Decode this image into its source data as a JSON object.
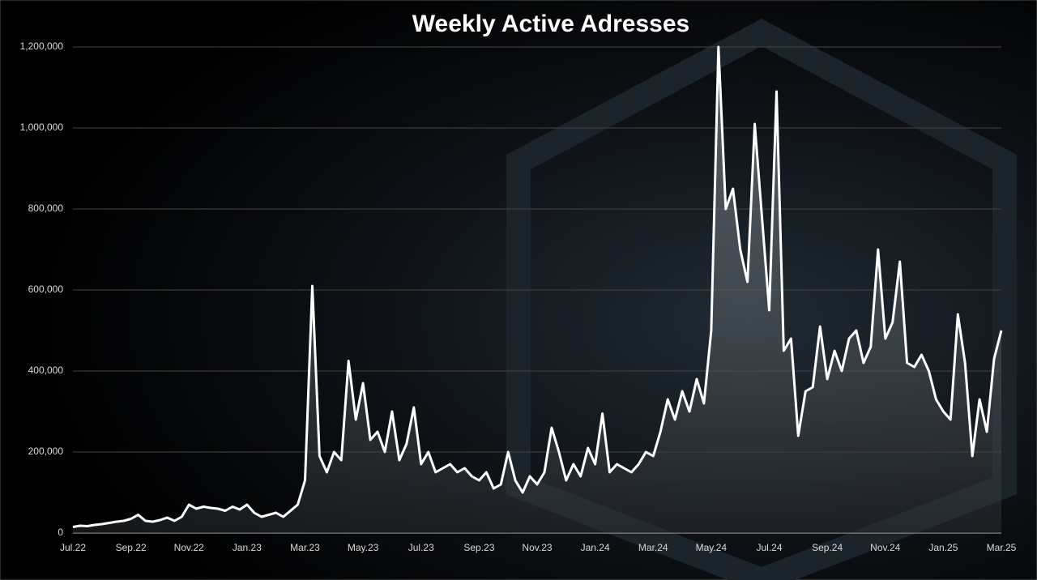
{
  "chart_data": {
    "type": "line",
    "title": "Weekly Active Adresses",
    "categories": [
      "Jul.22",
      null,
      null,
      null,
      null,
      null,
      null,
      null,
      "Sep.22",
      null,
      null,
      null,
      null,
      null,
      null,
      null,
      "Nov.22",
      null,
      null,
      null,
      null,
      null,
      null,
      null,
      "Jan.23",
      null,
      null,
      null,
      null,
      null,
      null,
      null,
      "Mar.23",
      null,
      null,
      null,
      null,
      null,
      null,
      null,
      "May.23",
      null,
      null,
      null,
      null,
      null,
      null,
      null,
      "Jul.23",
      null,
      null,
      null,
      null,
      null,
      null,
      null,
      "Sep.23",
      null,
      null,
      null,
      null,
      null,
      null,
      null,
      "Nov.23",
      null,
      null,
      null,
      null,
      null,
      null,
      null,
      "Jan.24",
      null,
      null,
      null,
      null,
      null,
      null,
      null,
      "Mar.24",
      null,
      null,
      null,
      null,
      null,
      null,
      null,
      "May.24",
      null,
      null,
      null,
      null,
      null,
      null,
      null,
      "Jul.24",
      null,
      null,
      null,
      null,
      null,
      null,
      null,
      "Sep.24",
      null,
      null,
      null,
      null,
      null,
      null,
      null,
      "Nov.24",
      null,
      null,
      null,
      null,
      null,
      null,
      null,
      "Jan.25",
      null,
      null,
      null,
      null,
      null,
      null,
      null,
      "Mar.25"
    ],
    "series": [
      {
        "color": "#ffffff",
        "values": [
          15000,
          18000,
          17000,
          20000,
          22000,
          25000,
          28000,
          30000,
          35000,
          45000,
          30000,
          28000,
          32000,
          38000,
          30000,
          40000,
          70000,
          60000,
          65000,
          62000,
          60000,
          55000,
          65000,
          58000,
          70000,
          50000,
          40000,
          45000,
          50000,
          40000,
          55000,
          70000,
          130000,
          610000,
          190000,
          150000,
          200000,
          180000,
          425000,
          280000,
          370000,
          230000,
          250000,
          200000,
          300000,
          180000,
          220000,
          310000,
          170000,
          200000,
          150000,
          160000,
          170000,
          150000,
          160000,
          140000,
          130000,
          150000,
          110000,
          120000,
          200000,
          130000,
          100000,
          140000,
          120000,
          150000,
          260000,
          200000,
          130000,
          170000,
          140000,
          210000,
          170000,
          295000,
          150000,
          170000,
          160000,
          150000,
          170000,
          200000,
          190000,
          250000,
          330000,
          280000,
          350000,
          300000,
          380000,
          320000,
          500000,
          1200000,
          800000,
          850000,
          700000,
          620000,
          1010000,
          780000,
          550000,
          1090000,
          450000,
          480000,
          240000,
          350000,
          360000,
          510000,
          380000,
          450000,
          400000,
          480000,
          500000,
          420000,
          460000,
          700000,
          480000,
          520000,
          670000,
          420000,
          410000,
          440000,
          400000,
          330000,
          300000,
          280000,
          540000,
          420000,
          190000,
          330000,
          250000,
          430000,
          500000
        ]
      }
    ],
    "ylim": [
      0,
      1200000
    ],
    "yticks": [
      0,
      {
        "value": 200000,
        "label": "200,000"
      },
      {
        "value": 400000,
        "label": "400,000"
      },
      {
        "value": 600000,
        "label": "600,000"
      },
      {
        "value": 800000,
        "label": "800,000"
      },
      {
        "value": 1000000,
        "label": "1,000,000"
      },
      {
        "value": 1200000,
        "label": "1,200,000"
      }
    ],
    "grid": true
  }
}
